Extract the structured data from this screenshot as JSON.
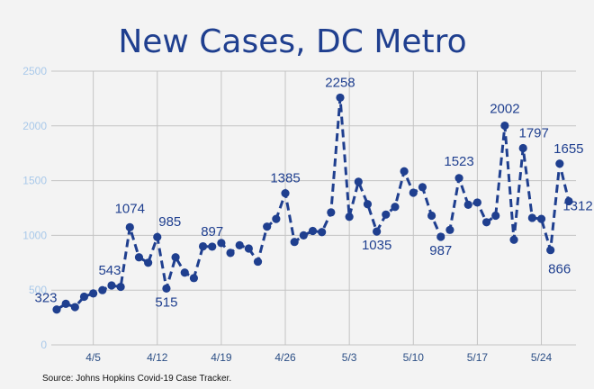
{
  "chart_data": {
    "type": "line",
    "title": "New Cases, DC Metro",
    "source": "Source: Johns Hopkins Covid-19 Case Tracker.",
    "xlabel": "",
    "ylabel": "",
    "ylim": [
      0,
      2500
    ],
    "yticks": [
      0,
      500,
      1000,
      1500,
      2000,
      2500
    ],
    "grid": true,
    "legend": "none",
    "line_style": "dashed",
    "color": "#1f3f8f",
    "x_tick_labels": [
      {
        "index": 4,
        "label": "4/5"
      },
      {
        "index": 11,
        "label": "4/12"
      },
      {
        "index": 18,
        "label": "4/19"
      },
      {
        "index": 25,
        "label": "4/26"
      },
      {
        "index": 32,
        "label": "5/3"
      },
      {
        "index": 39,
        "label": "5/10"
      },
      {
        "index": 46,
        "label": "5/17"
      },
      {
        "index": 53,
        "label": "5/24"
      }
    ],
    "values": [
      323,
      375,
      345,
      440,
      470,
      500,
      543,
      530,
      1074,
      800,
      750,
      985,
      515,
      800,
      660,
      610,
      900,
      897,
      930,
      840,
      910,
      880,
      760,
      1080,
      1150,
      1385,
      940,
      1000,
      1040,
      1030,
      1210,
      2258,
      1170,
      1490,
      1285,
      1035,
      1190,
      1260,
      1585,
      1390,
      1440,
      1180,
      987,
      1050,
      1523,
      1280,
      1300,
      1120,
      1180,
      2002,
      960,
      1797,
      1160,
      1150,
      866,
      1655,
      1312
    ],
    "data_labels": [
      {
        "index": 0,
        "text": "323"
      },
      {
        "index": 6,
        "text": "543"
      },
      {
        "index": 8,
        "text": "1074"
      },
      {
        "index": 11,
        "text": "985"
      },
      {
        "index": 12,
        "text": "515"
      },
      {
        "index": 17,
        "text": "897"
      },
      {
        "index": 25,
        "text": "1385"
      },
      {
        "index": 31,
        "text": "2258"
      },
      {
        "index": 35,
        "text": "1035"
      },
      {
        "index": 42,
        "text": "987"
      },
      {
        "index": 44,
        "text": "1523"
      },
      {
        "index": 49,
        "text": "2002"
      },
      {
        "index": 51,
        "text": "1797"
      },
      {
        "index": 54,
        "text": "866"
      },
      {
        "index": 55,
        "text": "1655"
      },
      {
        "index": 56,
        "text": "1312"
      }
    ]
  }
}
